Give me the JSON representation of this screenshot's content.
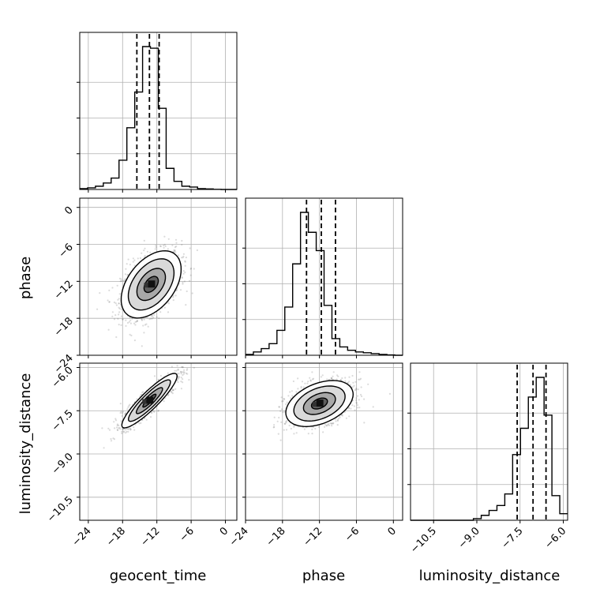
{
  "chart_data": {
    "type": "corner",
    "parameters": [
      "geocent_time",
      "phase",
      "luminosity_distance"
    ],
    "xlabels": {
      "col0": "geocent_time",
      "col1": "phase",
      "col2": "luminosity_distance"
    },
    "ylabels": {
      "row1": "phase",
      "row2": "luminosity_distance"
    },
    "ticks": {
      "geocent_time": {
        "values": [
          -24,
          -18,
          -12,
          -6,
          0
        ],
        "labels": [
          "−24",
          "−18",
          "−12",
          "−6",
          "0"
        ]
      },
      "phase": {
        "values": [
          -24,
          -18,
          -12,
          -6,
          0
        ],
        "labels": [
          "−24",
          "−18",
          "−12",
          "−6",
          "0"
        ]
      },
      "luminosity_distance": {
        "values": [
          -10.5,
          -9.0,
          -7.5,
          -6.0
        ],
        "labels": [
          "−10.5",
          "−9.0",
          "−7.5",
          "−6.0"
        ]
      }
    },
    "ranges": {
      "geocent_time": [
        -25.5,
        2.0
      ],
      "phase": [
        -24.0,
        1.5
      ],
      "luminosity_distance": [
        -11.3,
        -5.85
      ]
    },
    "histograms": {
      "geocent_time": {
        "bin_edges": [
          -25.5,
          -24.125,
          -22.75,
          -21.375,
          -20.0,
          -18.625,
          -17.25,
          -15.875,
          -14.5,
          -13.125,
          -11.75,
          -10.375,
          -9.0,
          -7.625,
          -6.25,
          -4.875,
          -3.5,
          -2.125,
          -0.75,
          0.625,
          2.0
        ],
        "counts": [
          0.005,
          0.01,
          0.02,
          0.04,
          0.07,
          0.18,
          0.38,
          0.6,
          0.88,
          0.87,
          0.5,
          0.13,
          0.05,
          0.02,
          0.015,
          0.005,
          0.003,
          0.001,
          0.0,
          0.0
        ],
        "quantiles": [
          -15.5,
          -13.3,
          -11.6
        ]
      },
      "phase": {
        "bin_edges": [
          -24.0,
          -22.725,
          -21.45,
          -20.175,
          -18.9,
          -17.625,
          -16.35,
          -15.075,
          -13.8,
          -12.525,
          -11.25,
          -9.975,
          -8.7,
          -7.425,
          -6.15,
          -4.875,
          -3.6,
          -2.325,
          -1.05,
          0.225,
          1.5
        ],
        "counts": [
          0.005,
          0.02,
          0.04,
          0.07,
          0.15,
          0.29,
          0.55,
          0.86,
          0.74,
          0.63,
          0.3,
          0.1,
          0.05,
          0.03,
          0.02,
          0.015,
          0.01,
          0.005,
          0.002,
          0.0
        ],
        "quantiles": [
          -14.1,
          -11.7,
          -9.4
        ]
      },
      "luminosity_distance": {
        "bin_edges": [
          -11.3,
          -11.0275,
          -10.755,
          -10.4825,
          -10.21,
          -9.9375,
          -9.665,
          -9.3925,
          -9.12,
          -8.8475,
          -8.575,
          -8.3025,
          -8.03,
          -7.7575,
          -7.485,
          -7.2125,
          -6.94,
          -6.6675,
          -6.395,
          -6.1225,
          -5.85
        ],
        "counts": [
          0.0,
          0.0,
          0.0,
          0.0,
          0.0,
          0.0,
          0.0,
          0.0,
          0.01,
          0.03,
          0.06,
          0.09,
          0.16,
          0.4,
          0.56,
          0.75,
          0.87,
          0.64,
          0.15,
          0.04
        ],
        "quantiles": [
          -7.6,
          -7.05,
          -6.6
        ]
      }
    },
    "joint": [
      {
        "x": "geocent_time",
        "y": "phase",
        "mean": [
          -13.0,
          -12.5
        ],
        "sd": [
          2.5,
          2.6
        ],
        "rho": 0.45,
        "contours": [
          0.5,
          1.0,
          1.6,
          2.1
        ]
      },
      {
        "x": "geocent_time",
        "y": "luminosity_distance",
        "mean": [
          -13.3,
          -7.15
        ],
        "sd": [
          2.3,
          0.45
        ],
        "rho": 0.9,
        "contours": [
          0.5,
          1.0,
          1.6,
          2.1
        ]
      },
      {
        "x": "phase",
        "y": "luminosity_distance",
        "mean": [
          -12.0,
          -7.25
        ],
        "sd": [
          2.6,
          0.38
        ],
        "rho": 0.4,
        "contours": [
          0.5,
          1.0,
          1.6,
          2.1
        ]
      }
    ],
    "grid": true,
    "colors": {
      "line": "#000000",
      "points": "#5a5a5a",
      "grid": "#b0b0b0"
    }
  }
}
